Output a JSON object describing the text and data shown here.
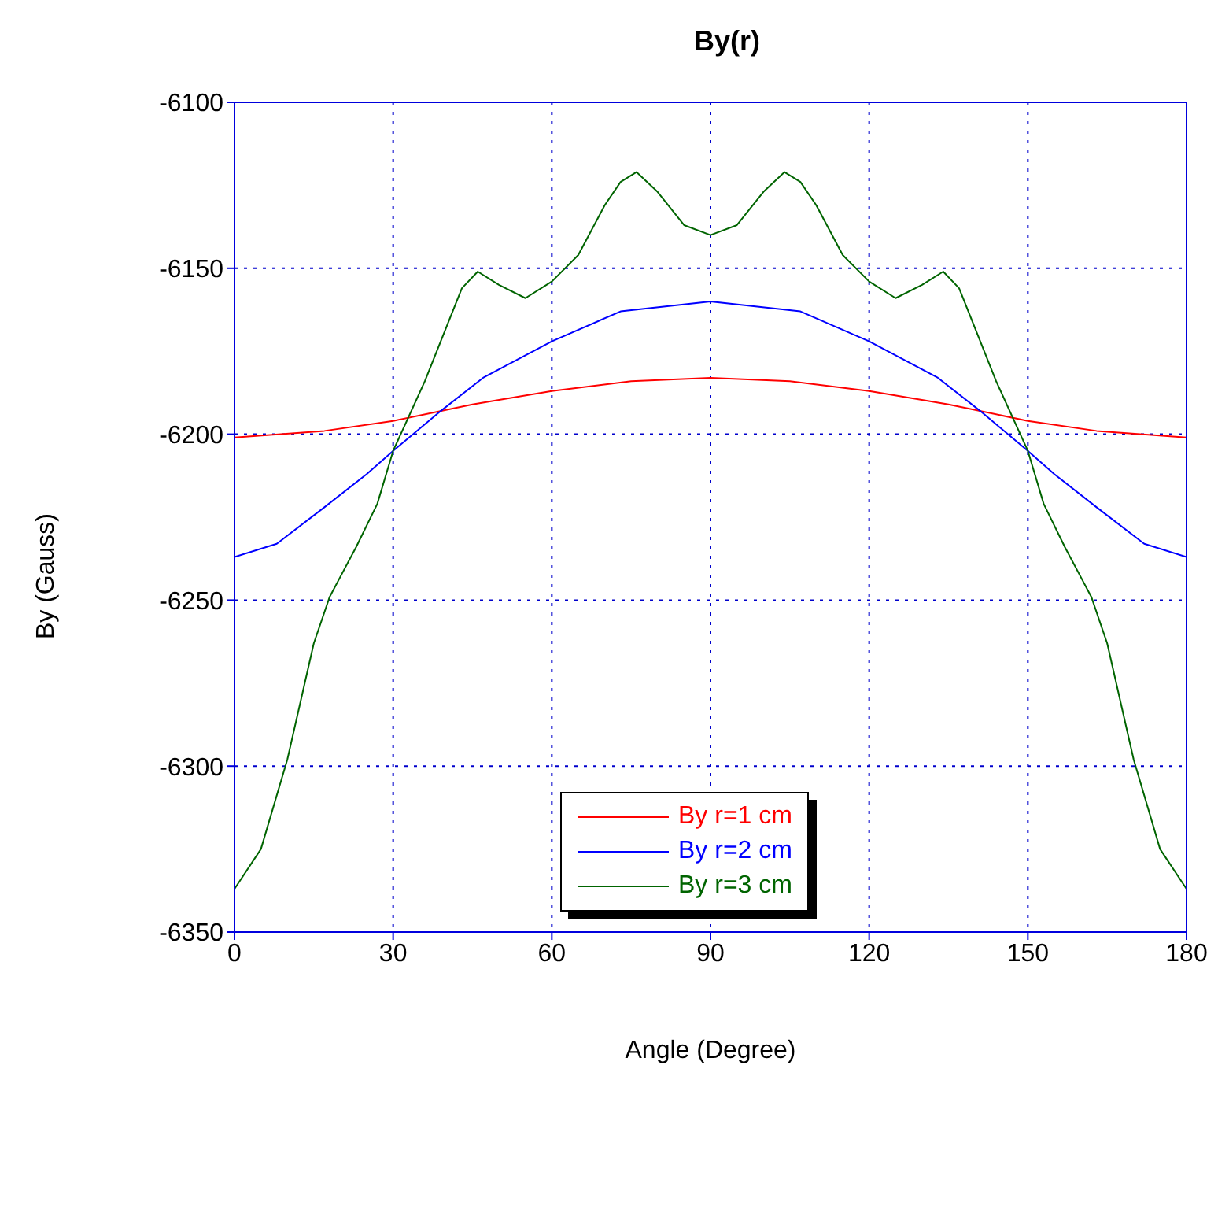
{
  "chart_data": {
    "type": "line",
    "title": "By(r)",
    "xlabel": "Angle (Degree)",
    "ylabel": "By (Gauss)",
    "xlim": [
      0,
      180
    ],
    "xticks": [
      0,
      30,
      60,
      90,
      120,
      150,
      180
    ],
    "ylim": [
      -6350,
      -6100
    ],
    "yticks": [
      -6350,
      -6300,
      -6250,
      -6200,
      -6150,
      -6100
    ],
    "grid": true,
    "legend": "bottom",
    "line_style": "solid",
    "marker": "none",
    "series": [
      {
        "name": "By r=1 cm",
        "color": "#ff0000",
        "x": [
          0,
          17,
          30,
          45,
          60,
          75,
          90,
          105,
          120,
          135,
          150,
          163,
          180
        ],
        "values": [
          -6201,
          -6199,
          -6196,
          -6191,
          -6187,
          -6184,
          -6183,
          -6184,
          -6187,
          -6191,
          -6196,
          -6199,
          -6201
        ]
      },
      {
        "name": "By r=2 cm",
        "color": "#0000ff",
        "x": [
          0,
          8,
          17,
          25,
          30,
          39,
          47,
          60,
          73,
          90,
          107,
          120,
          133,
          141,
          150,
          155,
          163,
          172,
          180
        ],
        "values": [
          -6237,
          -6233,
          -6222,
          -6212,
          -6205,
          -6193,
          -6183,
          -6172,
          -6163,
          -6160,
          -6163,
          -6172,
          -6183,
          -6193,
          -6205,
          -6212,
          -6222,
          -6233,
          -6237
        ]
      },
      {
        "name": "By r=3 cm",
        "color": "#006400",
        "x": [
          0,
          5,
          10,
          15,
          18,
          20,
          23,
          27,
          30,
          36,
          40,
          43,
          46,
          50,
          55,
          60,
          65,
          70,
          73,
          76,
          80,
          85,
          90,
          95,
          100,
          104,
          107,
          110,
          115,
          120,
          125,
          130,
          134,
          137,
          140,
          144,
          150,
          153,
          157,
          160,
          162,
          165,
          170,
          175,
          180
        ],
        "values": [
          -6337,
          -6325,
          -6298,
          -6263,
          -6249,
          -6243,
          -6234,
          -6221,
          -6205,
          -6184,
          -6168,
          -6156,
          -6151,
          -6155,
          -6159,
          -6154,
          -6146,
          -6131,
          -6124,
          -6121,
          -6127,
          -6137,
          -6140,
          -6137,
          -6127,
          -6121,
          -6124,
          -6131,
          -6146,
          -6154,
          -6159,
          -6155,
          -6151,
          -6156,
          -6168,
          -6184,
          -6205,
          -6221,
          -6234,
          -6243,
          -6249,
          -6263,
          -6298,
          -6325,
          -6337
        ]
      }
    ]
  }
}
